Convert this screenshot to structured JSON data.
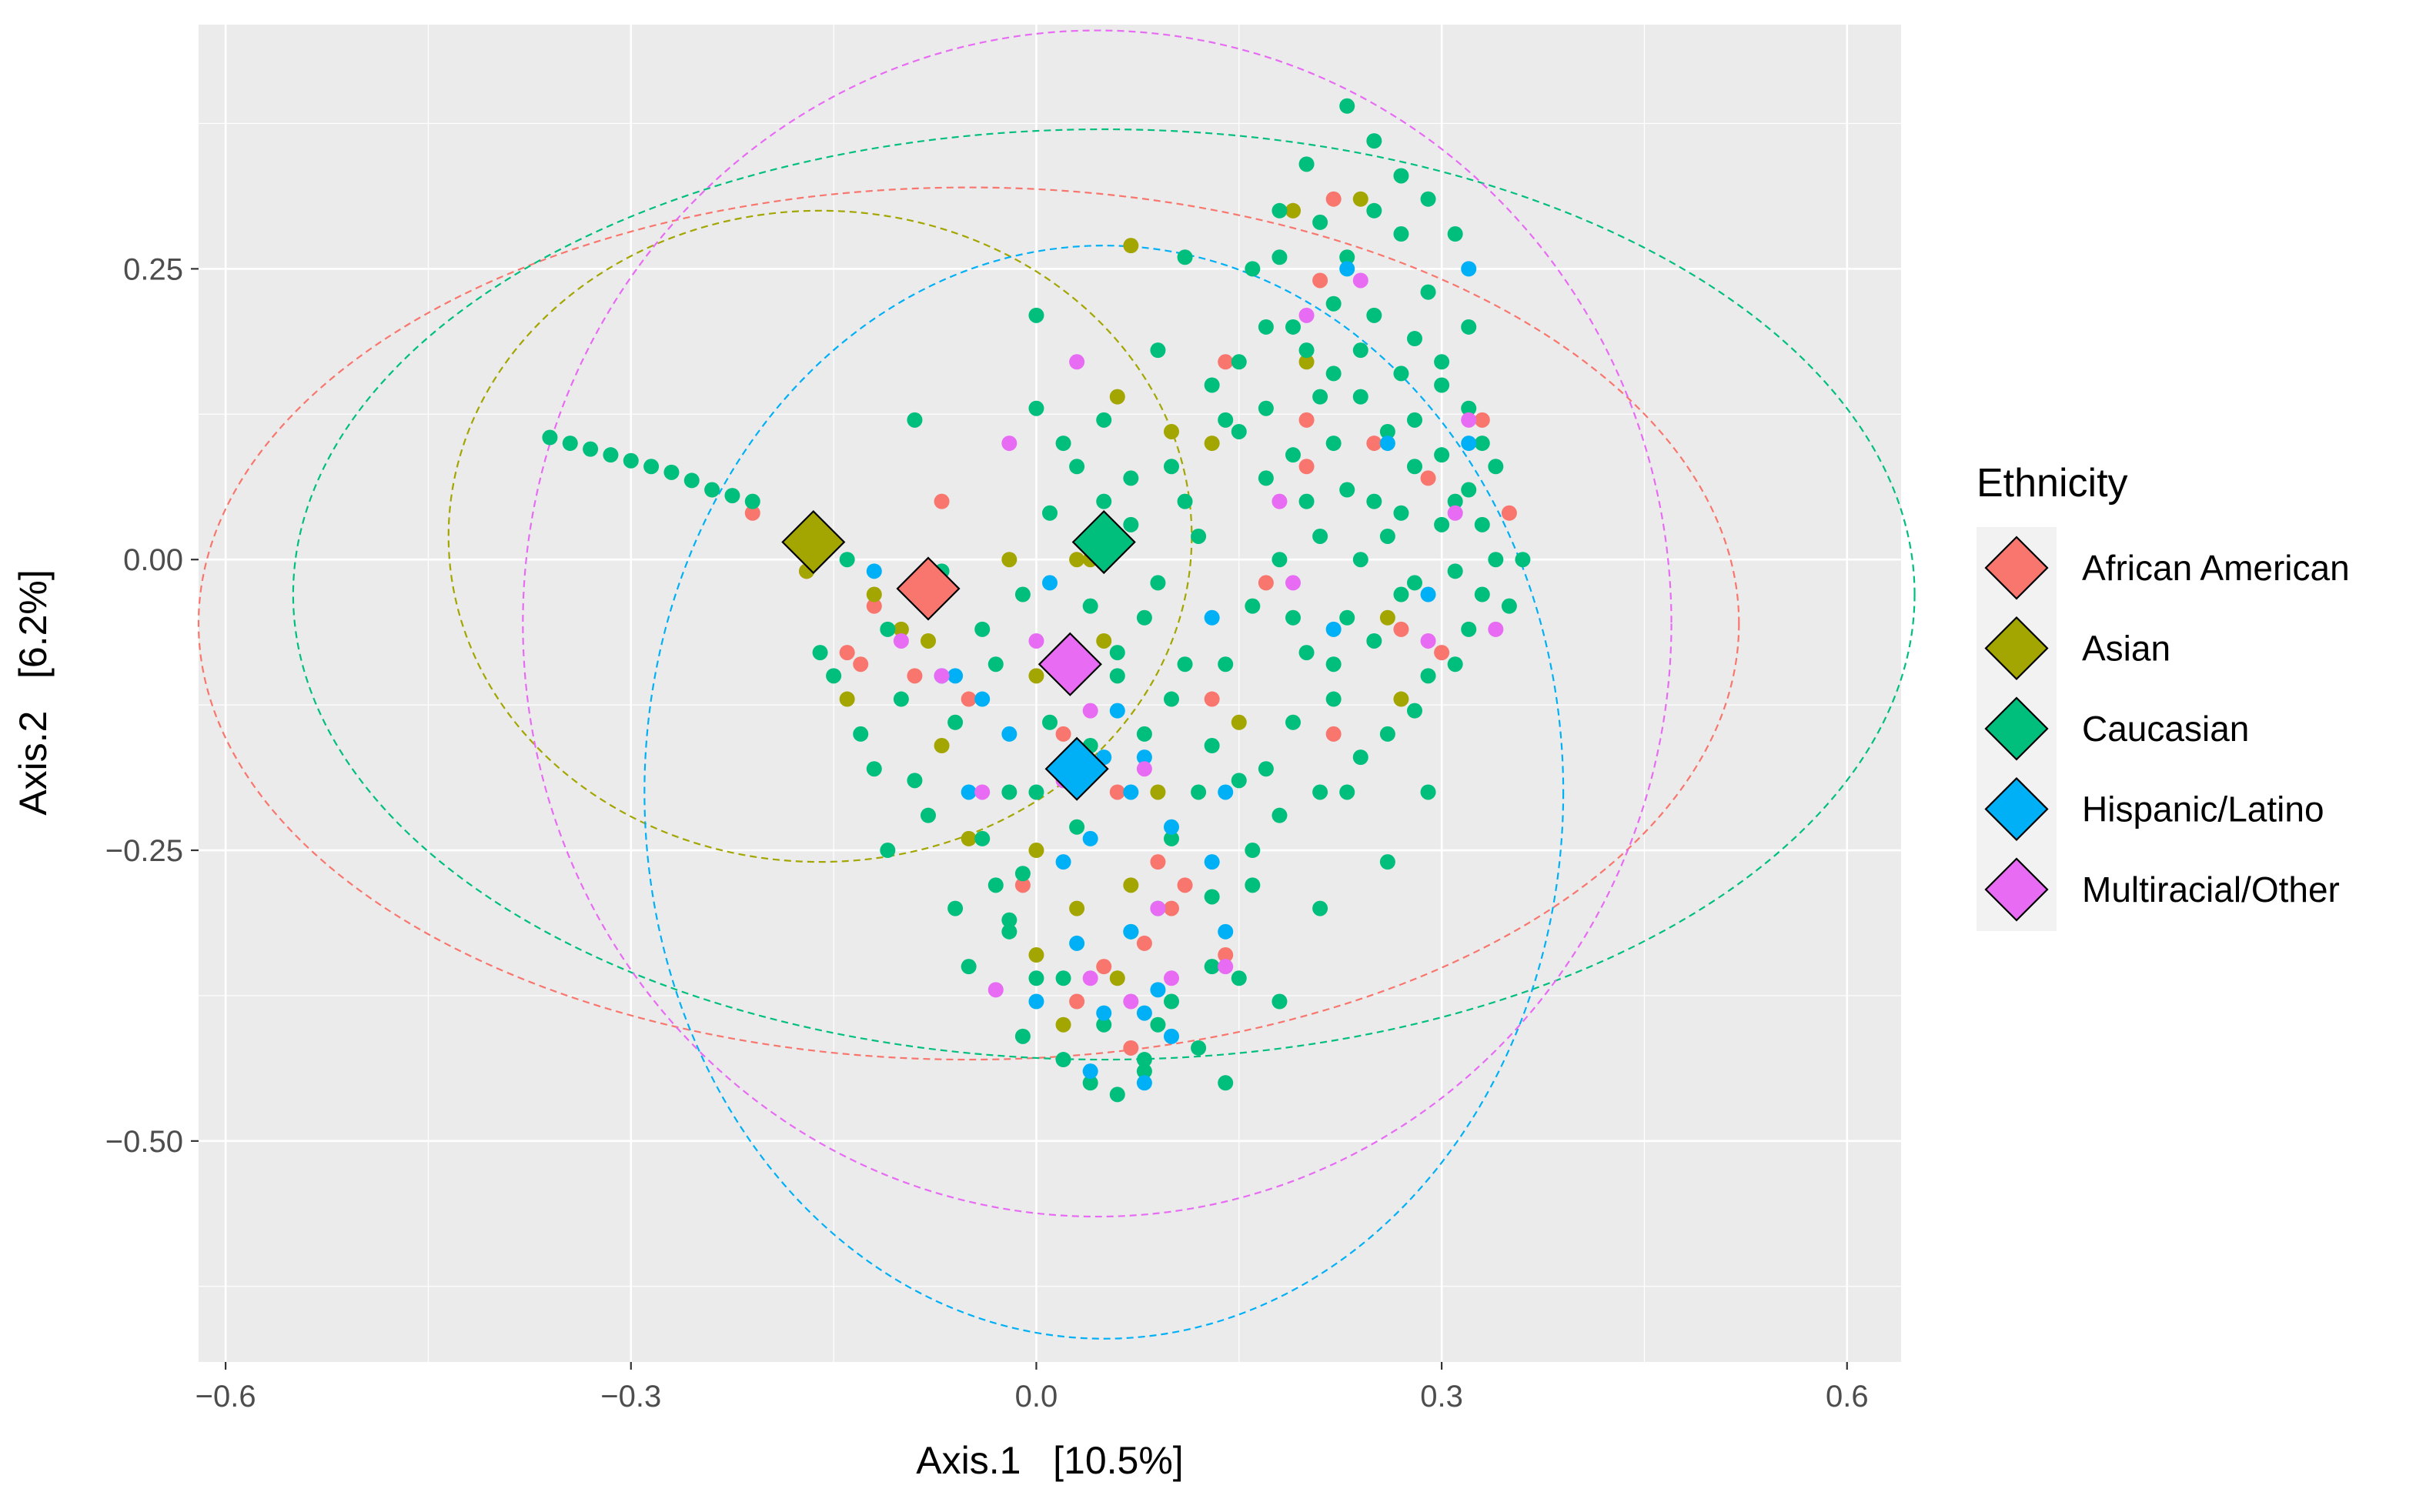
{
  "chart_data": {
    "type": "scatter",
    "xlabel": "Axis.1   [10.5%]",
    "ylabel": "Axis.2   [6.2%]",
    "xlim": [
      -0.62,
      0.64
    ],
    "ylim": [
      -0.69,
      0.46
    ],
    "x_ticks": [
      -0.6,
      -0.3,
      0.0,
      0.3,
      0.6
    ],
    "x_tick_labels": [
      "−0.6",
      "−0.3",
      "0.0",
      "0.3",
      "0.6"
    ],
    "y_ticks": [
      0.25,
      0.0,
      -0.25,
      -0.5
    ],
    "y_tick_labels": [
      "0.25",
      "0.00",
      "−0.25",
      "−0.50"
    ],
    "grid": true,
    "legend": {
      "title": "Ethnicity",
      "placement": "right",
      "entries": [
        "African American",
        "Asian",
        "Caucasian",
        "Hispanic/Latino",
        "Multiracial/Other"
      ]
    },
    "series": [
      {
        "name": "African American",
        "color": "#F8766D",
        "centroid": [
          -0.08,
          -0.025
        ],
        "ellipse": {
          "cx": -0.05,
          "cy": -0.055,
          "rx": 0.57,
          "ry": 0.375
        },
        "points": [
          [
            -0.21,
            0.04
          ],
          [
            -0.17,
            -0.01
          ],
          [
            -0.07,
            0.05
          ],
          [
            -0.14,
            -0.08
          ],
          [
            -0.12,
            -0.04
          ],
          [
            -0.09,
            -0.1
          ],
          [
            -0.05,
            -0.12
          ],
          [
            0.02,
            -0.15
          ],
          [
            0.06,
            -0.2
          ],
          [
            0.09,
            -0.26
          ],
          [
            0.1,
            -0.3
          ],
          [
            0.14,
            -0.34
          ],
          [
            0.07,
            -0.42
          ],
          [
            0.03,
            -0.38
          ],
          [
            0.19,
            0.3
          ],
          [
            0.22,
            0.31
          ],
          [
            0.2,
            0.12
          ],
          [
            0.21,
            0.24
          ],
          [
            0.14,
            0.17
          ],
          [
            0.17,
            -0.02
          ],
          [
            0.27,
            -0.06
          ],
          [
            0.3,
            -0.08
          ],
          [
            0.35,
            0.04
          ],
          [
            0.29,
            0.07
          ],
          [
            0.22,
            -0.15
          ],
          [
            0.13,
            -0.12
          ],
          [
            0.05,
            -0.35
          ],
          [
            0.11,
            -0.28
          ],
          [
            -0.01,
            -0.28
          ],
          [
            0.08,
            -0.33
          ],
          [
            0.25,
            0.1
          ],
          [
            0.2,
            0.08
          ],
          [
            -0.13,
            -0.09
          ],
          [
            0.33,
            0.12
          ]
        ]
      },
      {
        "name": "Asian",
        "color": "#A3A500",
        "centroid": [
          -0.165,
          0.015
        ],
        "ellipse": {
          "cx": -0.16,
          "cy": 0.02,
          "rx": 0.275,
          "ry": 0.28
        },
        "points": [
          [
            -0.17,
            -0.01
          ],
          [
            -0.12,
            -0.03
          ],
          [
            -0.14,
            -0.12
          ],
          [
            -0.1,
            -0.06
          ],
          [
            -0.07,
            -0.16
          ],
          [
            -0.05,
            -0.24
          ],
          [
            0.0,
            -0.25
          ],
          [
            0.03,
            -0.3
          ],
          [
            0.07,
            -0.28
          ],
          [
            0.02,
            -0.4
          ],
          [
            0.06,
            -0.36
          ],
          [
            0.0,
            -0.1
          ],
          [
            0.04,
            0.0
          ],
          [
            0.07,
            0.27
          ],
          [
            0.1,
            0.11
          ],
          [
            0.06,
            0.14
          ],
          [
            0.13,
            0.1
          ],
          [
            0.19,
            0.3
          ],
          [
            0.24,
            0.31
          ],
          [
            0.27,
            -0.12
          ],
          [
            0.15,
            -0.14
          ],
          [
            -0.02,
            0.0
          ],
          [
            0.05,
            -0.07
          ],
          [
            0.09,
            -0.2
          ],
          [
            -0.08,
            -0.07
          ],
          [
            0.0,
            -0.34
          ],
          [
            0.2,
            0.17
          ],
          [
            0.03,
            0.0
          ],
          [
            0.26,
            -0.05
          ]
        ]
      },
      {
        "name": "Caucasian",
        "color": "#00BF7D",
        "centroid": [
          0.05,
          0.015
        ],
        "ellipse": {
          "cx": 0.05,
          "cy": -0.03,
          "rx": 0.6,
          "ry": 0.4
        },
        "points": [
          [
            -0.36,
            0.105
          ],
          [
            -0.345,
            0.1
          ],
          [
            -0.33,
            0.095
          ],
          [
            -0.315,
            0.09
          ],
          [
            -0.3,
            0.085
          ],
          [
            -0.285,
            0.08
          ],
          [
            -0.27,
            0.075
          ],
          [
            -0.255,
            0.068
          ],
          [
            -0.24,
            0.06
          ],
          [
            -0.225,
            0.055
          ],
          [
            -0.21,
            0.05
          ],
          [
            -0.14,
            0.0
          ],
          [
            -0.16,
            -0.08
          ],
          [
            -0.12,
            -0.18
          ],
          [
            -0.08,
            -0.22
          ],
          [
            -0.1,
            -0.12
          ],
          [
            -0.04,
            -0.06
          ],
          [
            0.01,
            -0.14
          ],
          [
            0.0,
            -0.2
          ],
          [
            -0.01,
            -0.27
          ],
          [
            -0.02,
            -0.32
          ],
          [
            0.02,
            -0.36
          ],
          [
            0.05,
            -0.4
          ],
          [
            0.04,
            -0.45
          ],
          [
            0.08,
            -0.43
          ],
          [
            0.1,
            -0.38
          ],
          [
            0.13,
            -0.35
          ],
          [
            0.16,
            -0.25
          ],
          [
            0.12,
            -0.2
          ],
          [
            0.1,
            -0.12
          ],
          [
            0.08,
            -0.05
          ],
          [
            0.12,
            0.02
          ],
          [
            0.1,
            0.08
          ],
          [
            0.13,
            0.15
          ],
          [
            0.16,
            0.25
          ],
          [
            0.18,
            0.3
          ],
          [
            0.2,
            0.34
          ],
          [
            0.23,
            0.39
          ],
          [
            0.25,
            0.3
          ],
          [
            0.27,
            0.28
          ],
          [
            0.29,
            0.23
          ],
          [
            0.32,
            0.2
          ],
          [
            0.3,
            0.15
          ],
          [
            0.33,
            0.1
          ],
          [
            0.31,
            0.05
          ],
          [
            0.34,
            0.0
          ],
          [
            0.32,
            -0.06
          ],
          [
            0.29,
            -0.1
          ],
          [
            0.26,
            -0.15
          ],
          [
            0.23,
            -0.2
          ],
          [
            0.29,
            -0.2
          ],
          [
            0.26,
            -0.26
          ],
          [
            0.22,
            -0.12
          ],
          [
            0.24,
            0.0
          ],
          [
            0.26,
            0.02
          ],
          [
            0.25,
            0.05
          ],
          [
            0.28,
            0.08
          ],
          [
            0.22,
            0.1
          ],
          [
            0.2,
            0.05
          ],
          [
            0.18,
            0.0
          ],
          [
            0.16,
            -0.04
          ],
          [
            0.14,
            -0.09
          ],
          [
            0.19,
            -0.14
          ],
          [
            0.17,
            -0.18
          ],
          [
            0.21,
            0.14
          ],
          [
            0.24,
            0.18
          ],
          [
            0.27,
            0.16
          ],
          [
            0.22,
            0.22
          ],
          [
            0.19,
            0.2
          ],
          [
            0.15,
            0.11
          ],
          [
            0.17,
            0.07
          ],
          [
            0.27,
            0.04
          ],
          [
            0.28,
            -0.02
          ],
          [
            0.23,
            -0.05
          ],
          [
            0.2,
            -0.08
          ],
          [
            0.3,
            0.03
          ],
          [
            0.36,
            0.0
          ],
          [
            0.33,
            -0.03
          ],
          [
            0.05,
            0.05
          ],
          [
            0.07,
            0.03
          ],
          [
            0.02,
            0.1
          ],
          [
            0.0,
            0.13
          ],
          [
            -0.09,
            0.12
          ],
          [
            0.0,
            0.21
          ],
          [
            0.09,
            0.18
          ],
          [
            0.11,
            0.26
          ],
          [
            0.06,
            -0.1
          ],
          [
            0.03,
            -0.23
          ],
          [
            0.07,
            -0.32
          ],
          [
            0.09,
            -0.4
          ],
          [
            -0.05,
            -0.35
          ],
          [
            -0.03,
            -0.28
          ],
          [
            -0.06,
            -0.3
          ],
          [
            -0.01,
            -0.41
          ],
          [
            0.06,
            -0.46
          ],
          [
            0.14,
            -0.45
          ],
          [
            0.18,
            -0.38
          ],
          [
            0.16,
            -0.28
          ],
          [
            0.21,
            -0.3
          ],
          [
            -0.02,
            -0.2
          ],
          [
            0.04,
            -0.16
          ],
          [
            0.11,
            0.05
          ],
          [
            0.14,
            0.12
          ],
          [
            0.25,
            0.36
          ],
          [
            0.27,
            0.33
          ],
          [
            0.29,
            0.31
          ],
          [
            0.31,
            0.28
          ],
          [
            0.23,
            0.26
          ],
          [
            0.21,
            0.29
          ],
          [
            0.18,
            0.26
          ],
          [
            0.17,
            0.2
          ],
          [
            0.15,
            0.17
          ],
          [
            0.24,
            0.14
          ],
          [
            0.26,
            0.11
          ],
          [
            0.28,
            0.12
          ],
          [
            0.3,
            0.09
          ],
          [
            0.32,
            0.06
          ],
          [
            0.33,
            0.03
          ],
          [
            0.31,
            -0.01
          ],
          [
            0.27,
            -0.03
          ],
          [
            0.25,
            -0.07
          ],
          [
            0.22,
            -0.09
          ],
          [
            0.19,
            -0.05
          ],
          [
            0.21,
            0.02
          ],
          [
            0.23,
            0.06
          ],
          [
            0.19,
            0.09
          ],
          [
            0.17,
            0.13
          ],
          [
            0.2,
            0.18
          ],
          [
            0.22,
            0.16
          ],
          [
            0.25,
            0.21
          ],
          [
            0.28,
            0.19
          ],
          [
            0.3,
            0.17
          ],
          [
            0.32,
            0.13
          ],
          [
            0.34,
            0.08
          ],
          [
            0.35,
            -0.04
          ],
          [
            0.31,
            -0.09
          ],
          [
            0.28,
            -0.13
          ],
          [
            0.24,
            -0.17
          ],
          [
            0.21,
            -0.2
          ],
          [
            0.18,
            -0.22
          ],
          [
            0.15,
            -0.19
          ],
          [
            0.13,
            -0.16
          ],
          [
            0.11,
            -0.09
          ],
          [
            0.09,
            -0.02
          ],
          [
            0.07,
            0.07
          ],
          [
            0.05,
            0.12
          ],
          [
            0.03,
            0.08
          ],
          [
            0.01,
            0.04
          ],
          [
            -0.01,
            -0.03
          ],
          [
            -0.03,
            -0.09
          ],
          [
            -0.06,
            -0.14
          ],
          [
            -0.09,
            -0.19
          ],
          [
            -0.11,
            -0.25
          ],
          [
            -0.13,
            -0.15
          ],
          [
            -0.15,
            -0.1
          ],
          [
            -0.11,
            -0.06
          ],
          [
            -0.07,
            -0.01
          ],
          [
            -0.04,
            -0.24
          ],
          [
            -0.02,
            -0.31
          ],
          [
            0.0,
            -0.36
          ],
          [
            0.02,
            -0.43
          ],
          [
            0.08,
            -0.44
          ],
          [
            0.12,
            -0.42
          ],
          [
            0.15,
            -0.36
          ],
          [
            0.13,
            -0.29
          ],
          [
            0.1,
            -0.24
          ],
          [
            0.08,
            -0.15
          ],
          [
            0.06,
            -0.08
          ],
          [
            0.04,
            -0.04
          ]
        ]
      },
      {
        "name": "Hispanic/Latino",
        "color": "#00B0F6",
        "centroid": [
          0.03,
          -0.18
        ],
        "ellipse": {
          "cx": 0.05,
          "cy": -0.2,
          "rx": 0.34,
          "ry": 0.47
        },
        "points": [
          [
            -0.12,
            -0.01
          ],
          [
            -0.07,
            -0.1
          ],
          [
            -0.04,
            -0.12
          ],
          [
            0.01,
            -0.02
          ],
          [
            0.05,
            -0.17
          ],
          [
            0.08,
            -0.17
          ],
          [
            0.07,
            -0.2
          ],
          [
            0.04,
            -0.24
          ],
          [
            0.1,
            -0.23
          ],
          [
            0.13,
            -0.26
          ],
          [
            0.09,
            -0.3
          ],
          [
            0.07,
            -0.32
          ],
          [
            0.03,
            -0.33
          ],
          [
            0.0,
            -0.38
          ],
          [
            0.05,
            -0.39
          ],
          [
            0.08,
            -0.39
          ],
          [
            0.1,
            -0.41
          ],
          [
            0.04,
            -0.44
          ],
          [
            0.08,
            -0.45
          ],
          [
            0.14,
            -0.32
          ],
          [
            -0.05,
            -0.2
          ],
          [
            -0.06,
            -0.1
          ],
          [
            0.14,
            -0.2
          ],
          [
            0.13,
            -0.05
          ],
          [
            0.22,
            -0.06
          ],
          [
            0.23,
            0.25
          ],
          [
            0.26,
            0.1
          ],
          [
            0.32,
            0.25
          ],
          [
            0.32,
            0.1
          ],
          [
            0.29,
            -0.03
          ],
          [
            -0.02,
            -0.15
          ],
          [
            0.02,
            -0.26
          ],
          [
            0.06,
            -0.13
          ],
          [
            0.09,
            -0.37
          ]
        ]
      },
      {
        "name": "Multiracial/Other",
        "color": "#E76BF3",
        "centroid": [
          0.025,
          -0.09
        ],
        "ellipse": {
          "cx": 0.045,
          "cy": -0.055,
          "rx": 0.425,
          "ry": 0.51
        },
        "points": [
          [
            -0.02,
            0.1
          ],
          [
            -0.1,
            -0.07
          ],
          [
            -0.07,
            -0.1
          ],
          [
            -0.04,
            -0.2
          ],
          [
            0.0,
            -0.07
          ],
          [
            0.04,
            -0.13
          ],
          [
            0.08,
            -0.18
          ],
          [
            0.09,
            -0.3
          ],
          [
            0.1,
            -0.36
          ],
          [
            0.07,
            -0.38
          ],
          [
            0.04,
            -0.36
          ],
          [
            -0.03,
            -0.37
          ],
          [
            0.03,
            0.17
          ],
          [
            0.2,
            0.21
          ],
          [
            0.24,
            0.24
          ],
          [
            0.19,
            -0.02
          ],
          [
            0.29,
            -0.07
          ],
          [
            0.32,
            0.12
          ],
          [
            0.34,
            -0.06
          ],
          [
            0.31,
            0.04
          ],
          [
            0.18,
            0.05
          ],
          [
            0.14,
            -0.35
          ],
          [
            0.02,
            -0.19
          ]
        ]
      }
    ]
  }
}
